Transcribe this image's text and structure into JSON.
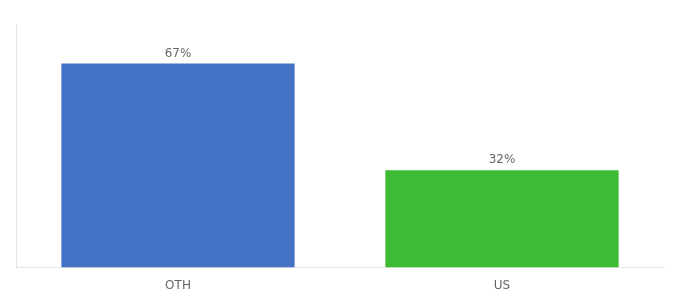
{
  "chart_data": {
    "type": "bar",
    "categories": [
      "OTH",
      "US"
    ],
    "values": [
      67,
      32
    ],
    "colors": [
      "#4472c4",
      "#3dbb35"
    ],
    "data_labels": true,
    "value_labels": [
      "67%",
      "32%"
    ],
    "ylim": [
      0,
      80
    ],
    "grid": false,
    "tick_labels": "x"
  }
}
